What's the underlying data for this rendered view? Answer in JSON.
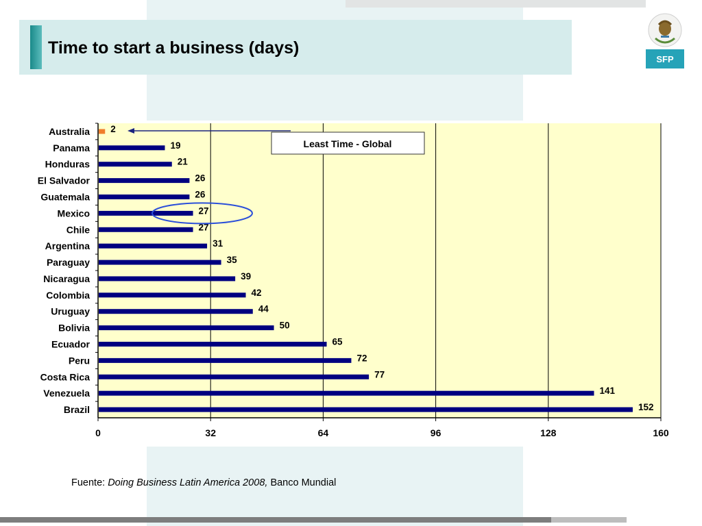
{
  "slide": {
    "title": "Time to start a business (days)",
    "logo_text": "SFP",
    "source_prefix": "Fuente: ",
    "source_title": "Doing Business Latin America 2008,",
    "source_suffix": " Banco Mundial"
  },
  "colors": {
    "bar": "#000080",
    "highlight_bar": "#f07d2c",
    "plot_bg": "#ffffcc",
    "title_band": "#d6ecec",
    "logo_bg": "#26a3b8",
    "ellipse": "#2b4fd9",
    "arrow": "#1a237e"
  },
  "chart_data": {
    "type": "bar",
    "orientation": "horizontal",
    "categories": [
      "Australia",
      "Panama",
      "Honduras",
      "El Salvador",
      "Guatemala",
      "Mexico",
      "Chile",
      "Argentina",
      "Paraguay",
      "Nicaragua",
      "Colombia",
      "Uruguay",
      "Bolivia",
      "Ecuador",
      "Peru",
      "Costa Rica",
      "Venezuela",
      "Brazil"
    ],
    "values": [
      2,
      19,
      21,
      26,
      26,
      27,
      27,
      31,
      35,
      39,
      42,
      44,
      50,
      65,
      72,
      77,
      141,
      152
    ],
    "xlim": [
      0,
      160
    ],
    "xticks": [
      0,
      32,
      64,
      96,
      128,
      160
    ],
    "highlight": [
      "Australia"
    ],
    "circled": [
      "Mexico"
    ],
    "grid": true,
    "annotation": "Least Time - Global"
  }
}
